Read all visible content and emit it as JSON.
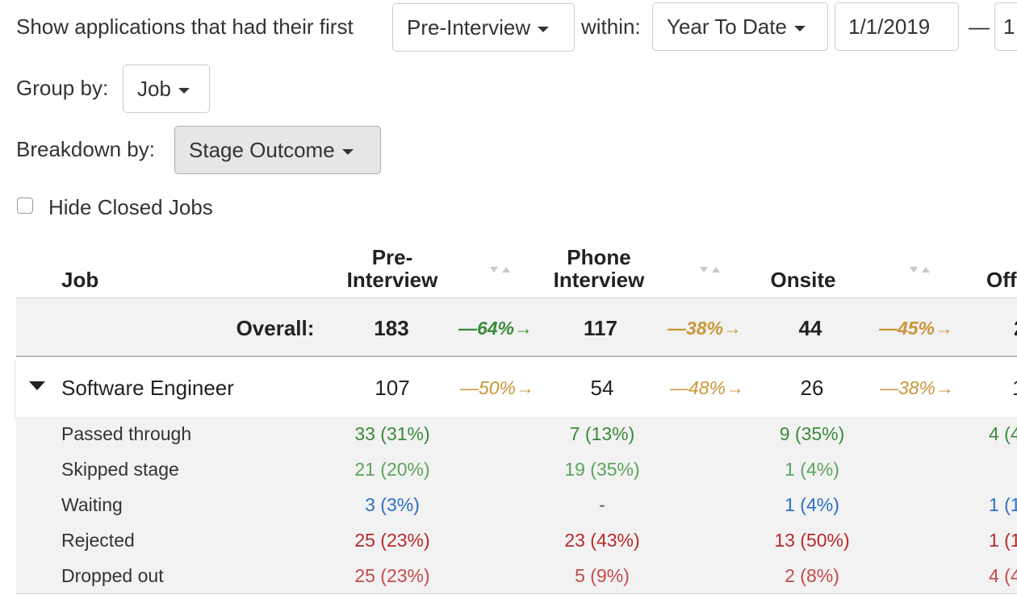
{
  "filters": {
    "show_label": "Show applications that had their first",
    "stage_select": "Pre-Interview",
    "within_label": "within:",
    "range_select": "Year To Date",
    "start_date": "1/1/2019",
    "range_dash": "—",
    "end_date_partial": "1",
    "group_label": "Group by:",
    "group_select": "Job",
    "breakdown_label": "Breakdown by:",
    "breakdown_select": "Stage Outcome",
    "hide_closed_label": "Hide Closed Jobs"
  },
  "table": {
    "headers": {
      "job": "Job",
      "pre_interview_line1": "Pre-",
      "pre_interview_line2": "Interview",
      "phone_line1": "Phone",
      "phone_line2": "Interview",
      "onsite": "Onsite",
      "offer_partial": "Off"
    },
    "overall": {
      "label": "Overall:",
      "pre_interview": "183",
      "conv1": "64%",
      "phone": "117",
      "conv2": "38%",
      "onsite": "44",
      "conv3": "45%",
      "offer_partial": "2"
    },
    "job": {
      "name": "Software Engineer",
      "pre_interview": "107",
      "conv1": "50%",
      "phone": "54",
      "conv2": "48%",
      "onsite": "26",
      "conv3": "38%",
      "offer_partial": "1"
    },
    "breakdown": [
      {
        "label": "Passed through",
        "pre": "33 (31%)",
        "phone": "7 (13%)",
        "onsite": "9 (35%)",
        "offer": "4 (4",
        "color": "#3a8a3a"
      },
      {
        "label": "Skipped stage",
        "pre": "21 (20%)",
        "phone": "19 (35%)",
        "onsite": "1 (4%)",
        "offer": "",
        "color": "#5ca45c"
      },
      {
        "label": "Waiting",
        "pre": "3 (3%)",
        "phone": "-",
        "onsite": "1 (4%)",
        "offer": "1 (1",
        "color": "#2f6fc2"
      },
      {
        "label": "Rejected",
        "pre": "25 (23%)",
        "phone": "23 (43%)",
        "onsite": "13 (50%)",
        "offer": "1 (1",
        "color": "#b82a2a"
      },
      {
        "label": "Dropped out",
        "pre": "25 (23%)",
        "phone": "5 (9%)",
        "onsite": "2 (8%)",
        "offer": "4 (4",
        "color": "#c44a4a"
      }
    ]
  },
  "colors": {
    "green_conv": "#3a8a3a",
    "gold_conv": "#c9963a",
    "neutral_dash": "#555555"
  }
}
